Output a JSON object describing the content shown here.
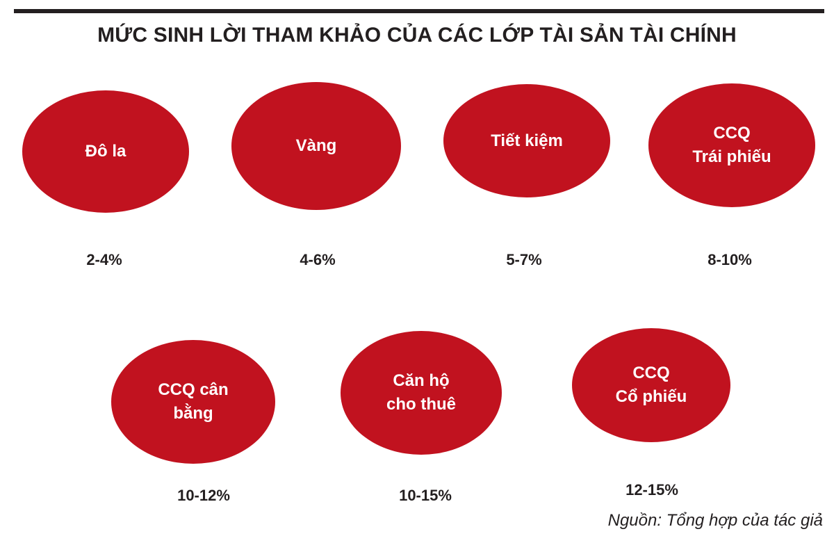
{
  "title": "MỨC SINH LỜI THAM KHẢO CỦA CÁC LỚP TÀI SẢN TÀI CHÍNH",
  "assets": [
    {
      "lines": [
        "Đô la"
      ],
      "rate": "2-4%"
    },
    {
      "lines": [
        "Vàng"
      ],
      "rate": "4-6%"
    },
    {
      "lines": [
        "Tiết kiệm"
      ],
      "rate": "5-7%"
    },
    {
      "lines": [
        "CCQ",
        "Trái phiếu"
      ],
      "rate": "8-10%"
    },
    {
      "lines": [
        "CCQ cân",
        "bằng"
      ],
      "rate": "10-12%"
    },
    {
      "lines": [
        "Căn hộ",
        "cho thuê"
      ],
      "rate": "10-15%"
    },
    {
      "lines": [
        "CCQ",
        "Cổ phiếu"
      ],
      "rate": "12-15%"
    }
  ],
  "source": "Nguồn: Tổng hợp của tác giả",
  "colors": {
    "ellipse_fill": "#c1121f",
    "text_dark": "#231f20",
    "ellipse_text": "#ffffff"
  }
}
